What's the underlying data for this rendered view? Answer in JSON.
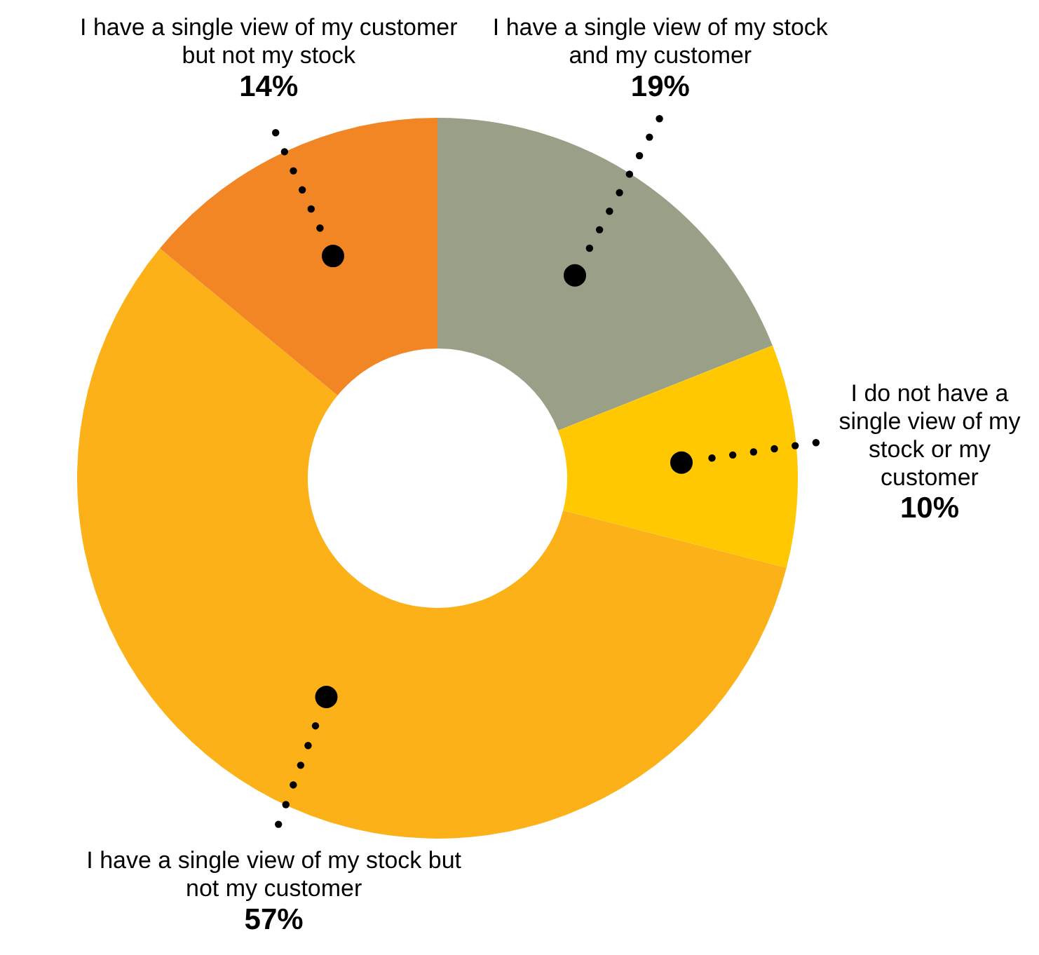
{
  "chart_data": {
    "type": "donut",
    "categories": [
      "I have a single view of my stock and my customer",
      "I do not have a single view of my stock or my customer",
      "I have a single view of my stock but not my customer",
      "I have a single view of my customer but not my stock"
    ],
    "values": [
      19,
      10,
      57,
      14
    ],
    "colors": [
      "#9a9f87",
      "#ffc800",
      "#fbb117",
      "#f28524"
    ],
    "value_labels": [
      "19%",
      "10%",
      "57%",
      "14%"
    ],
    "legend": false
  }
}
